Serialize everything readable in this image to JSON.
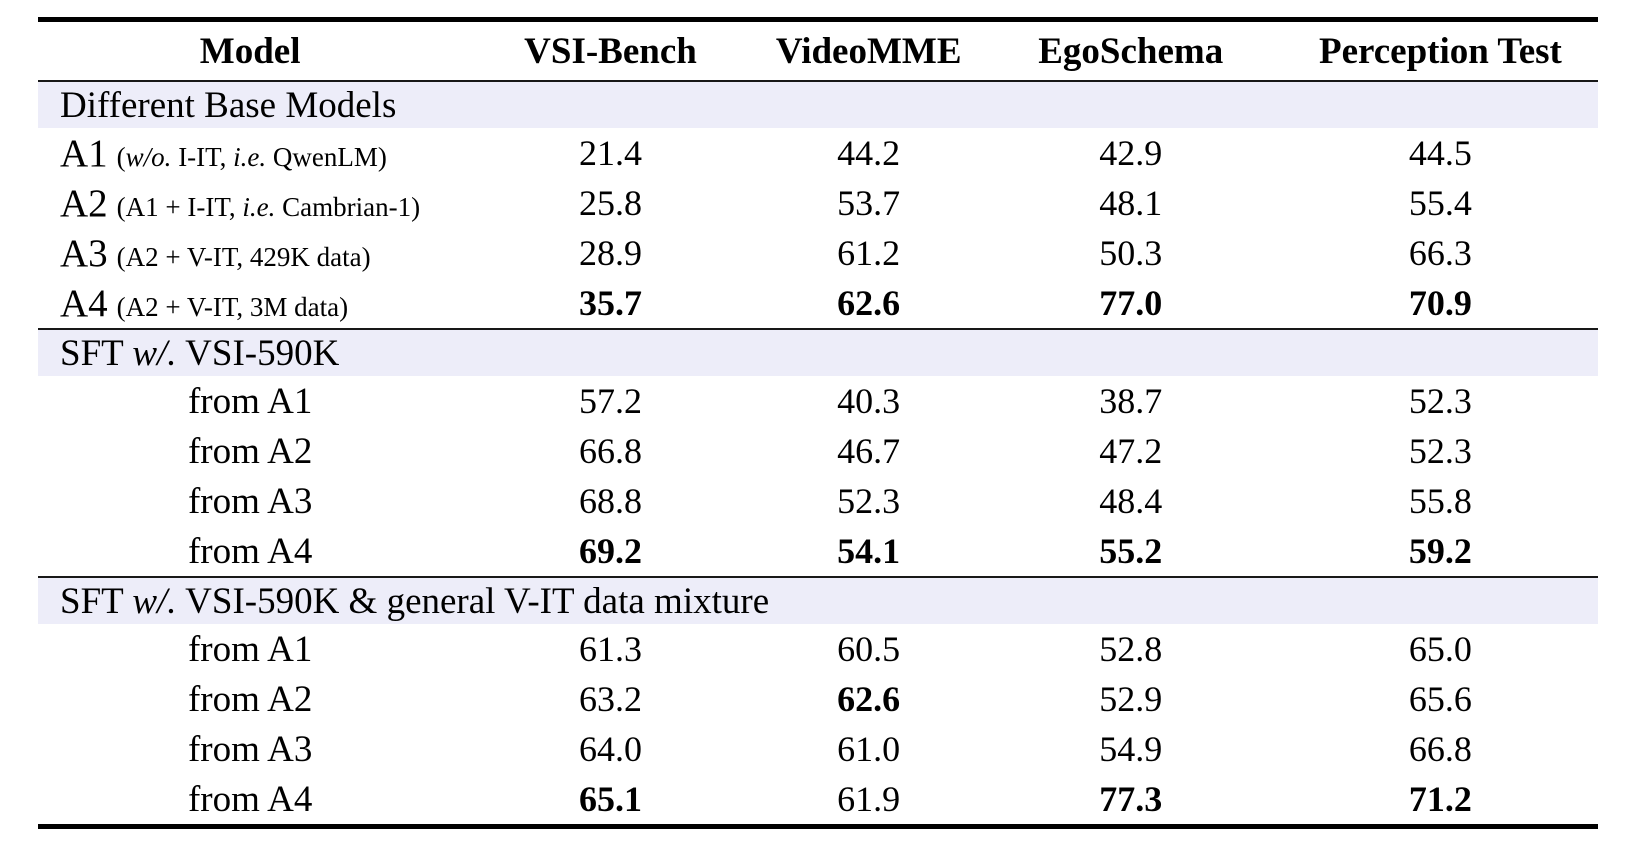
{
  "styles": {
    "section_band_color": "#EDEDF9",
    "rule_color": "#000000",
    "text_color": "#000000"
  },
  "table": {
    "columns": [
      "Model",
      "VSI-Bench",
      "VideoMME",
      "EgoSchema",
      "Perception Test"
    ],
    "sections": [
      {
        "title_segments": [
          {
            "text": "Different Base Models",
            "italic": false
          }
        ],
        "rows": [
          {
            "label_type": "model",
            "label_main": "A1",
            "note_segments": [
              {
                "text": "(",
                "italic": false
              },
              {
                "text": "w/o.",
                "italic": true
              },
              {
                "text": " I-IT, ",
                "italic": false
              },
              {
                "text": "i.e.",
                "italic": true
              },
              {
                "text": " QwenLM)",
                "italic": false
              }
            ],
            "values": [
              "21.4",
              "44.2",
              "42.9",
              "44.5"
            ],
            "bold": [
              false,
              false,
              false,
              false
            ]
          },
          {
            "label_type": "model",
            "label_main": "A2",
            "note_segments": [
              {
                "text": "(A1 + I-IT, ",
                "italic": false
              },
              {
                "text": "i.e.",
                "italic": true
              },
              {
                "text": " Cambrian-1)",
                "italic": false
              }
            ],
            "values": [
              "25.8",
              "53.7",
              "48.1",
              "55.4"
            ],
            "bold": [
              false,
              false,
              false,
              false
            ]
          },
          {
            "label_type": "model",
            "label_main": "A3",
            "note_segments": [
              {
                "text": "(A2 + V-IT, 429K data)",
                "italic": false
              }
            ],
            "values": [
              "28.9",
              "61.2",
              "50.3",
              "66.3"
            ],
            "bold": [
              false,
              false,
              false,
              false
            ]
          },
          {
            "label_type": "model",
            "label_main": "A4",
            "note_segments": [
              {
                "text": "(A2 + V-IT, 3M data)",
                "italic": false
              }
            ],
            "values": [
              "35.7",
              "62.6",
              "77.0",
              "70.9"
            ],
            "bold": [
              true,
              true,
              true,
              true
            ]
          }
        ]
      },
      {
        "title_segments": [
          {
            "text": "SFT ",
            "italic": false
          },
          {
            "text": "w/.",
            "italic": true
          },
          {
            "text": " VSI-590K",
            "italic": false
          }
        ],
        "rows": [
          {
            "label_type": "derived",
            "label_main": "from A1",
            "note_segments": [],
            "values": [
              "57.2",
              "40.3",
              "38.7",
              "52.3"
            ],
            "bold": [
              false,
              false,
              false,
              false
            ]
          },
          {
            "label_type": "derived",
            "label_main": "from A2",
            "note_segments": [],
            "values": [
              "66.8",
              "46.7",
              "47.2",
              "52.3"
            ],
            "bold": [
              false,
              false,
              false,
              false
            ]
          },
          {
            "label_type": "derived",
            "label_main": "from A3",
            "note_segments": [],
            "values": [
              "68.8",
              "52.3",
              "48.4",
              "55.8"
            ],
            "bold": [
              false,
              false,
              false,
              false
            ]
          },
          {
            "label_type": "derived",
            "label_main": "from A4",
            "note_segments": [],
            "values": [
              "69.2",
              "54.1",
              "55.2",
              "59.2"
            ],
            "bold": [
              true,
              true,
              true,
              true
            ]
          }
        ]
      },
      {
        "title_segments": [
          {
            "text": "SFT ",
            "italic": false
          },
          {
            "text": "w/.",
            "italic": true
          },
          {
            "text": " VSI-590K & general V-IT data mixture",
            "italic": false
          }
        ],
        "rows": [
          {
            "label_type": "derived",
            "label_main": "from A1",
            "note_segments": [],
            "values": [
              "61.3",
              "60.5",
              "52.8",
              "65.0"
            ],
            "bold": [
              false,
              false,
              false,
              false
            ]
          },
          {
            "label_type": "derived",
            "label_main": "from A2",
            "note_segments": [],
            "values": [
              "63.2",
              "62.6",
              "52.9",
              "65.6"
            ],
            "bold": [
              false,
              true,
              false,
              false
            ]
          },
          {
            "label_type": "derived",
            "label_main": "from A3",
            "note_segments": [],
            "values": [
              "64.0",
              "61.0",
              "54.9",
              "66.8"
            ],
            "bold": [
              false,
              false,
              false,
              false
            ]
          },
          {
            "label_type": "derived",
            "label_main": "from A4",
            "note_segments": [],
            "values": [
              "65.1",
              "61.9",
              "77.3",
              "71.2"
            ],
            "bold": [
              true,
              false,
              true,
              true
            ]
          }
        ]
      }
    ]
  }
}
